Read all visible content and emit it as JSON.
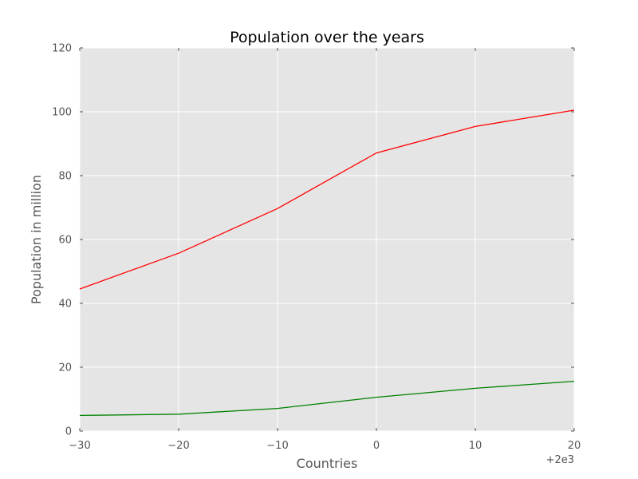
{
  "chart_data": {
    "type": "line",
    "title": "Population over the years",
    "xlabel": "Countries",
    "ylabel": "Population in million",
    "x_offset_label": "+2e3",
    "x": [
      -30,
      -20,
      -10,
      0,
      10,
      20
    ],
    "xlim": [
      -30,
      20
    ],
    "ylim": [
      0,
      120
    ],
    "x_ticks": [
      -30,
      -20,
      -10,
      0,
      10,
      20
    ],
    "x_tick_labels": [
      "−30",
      "−20",
      "−10",
      "0",
      "10",
      "20"
    ],
    "y_ticks": [
      0,
      20,
      40,
      60,
      80,
      100,
      120
    ],
    "y_tick_labels": [
      "0",
      "20",
      "40",
      "60",
      "80",
      "100",
      "120"
    ],
    "grid": true,
    "legend": "none",
    "plot_background": "#e5e5e5",
    "series": [
      {
        "color": "#ff0000",
        "values": [
          44.5,
          55.7,
          69.7,
          87.1,
          95.4,
          100.5
        ]
      },
      {
        "color": "#008000",
        "values": [
          4.9,
          5.3,
          7.1,
          10.6,
          13.4,
          15.6
        ]
      }
    ]
  }
}
